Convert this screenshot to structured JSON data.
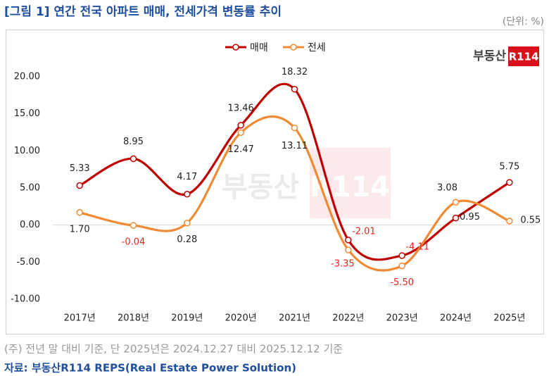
{
  "chart_data": {
    "type": "line",
    "title": "[그림 1] 연간 전국 아파트 매매, 전세가격 변동률 추이",
    "unit": "(단위: %)",
    "brand": {
      "text": "부동산",
      "badge": "R114"
    },
    "categories": [
      "2017년",
      "2018년",
      "2019년",
      "2020년",
      "2021년",
      "2022년",
      "2023년",
      "2024년",
      "2025년"
    ],
    "series": [
      {
        "name": "매매",
        "color": "#c00000",
        "values": [
          5.33,
          8.95,
          4.17,
          13.46,
          18.32,
          -2.01,
          -4.11,
          0.95,
          5.75
        ],
        "value_labels": [
          "5.33",
          "8.95",
          "4.17",
          "13.46",
          "18.32",
          "-2.01",
          "-4.11",
          "0.95",
          "5.75"
        ]
      },
      {
        "name": "전세",
        "color": "#f08a33",
        "values": [
          1.7,
          -0.04,
          0.28,
          12.47,
          13.11,
          -3.35,
          -5.5,
          3.08,
          0.55
        ],
        "value_labels": [
          "1.70",
          "-0.04",
          "0.28",
          "12.47",
          "13.11",
          "-3.35",
          "-5.50",
          "3.08",
          "0.55"
        ]
      }
    ],
    "ylim": [
      -10,
      20
    ],
    "yticks": [
      {
        "value": 20,
        "label": "20.00"
      },
      {
        "value": 15,
        "label": "15.00"
      },
      {
        "value": 10,
        "label": "10.00"
      },
      {
        "value": 5,
        "label": "5.00"
      },
      {
        "value": 0,
        "label": "0.00"
      },
      {
        "value": -5,
        "label": "-5.00"
      },
      {
        "value": -10,
        "label": "-10.00"
      }
    ],
    "negative_tick_color": "#e8251e",
    "negative_label_color": "#e8251e",
    "zero_line": true,
    "smooth": true,
    "legend": "top",
    "note": "(주) 전년 말 대비 기준, 단 2025년은 2024.12.27 대비 2025.12.12 기준",
    "source": "자료: 부동산R114 REPS(Real Estate Power Solution)"
  }
}
